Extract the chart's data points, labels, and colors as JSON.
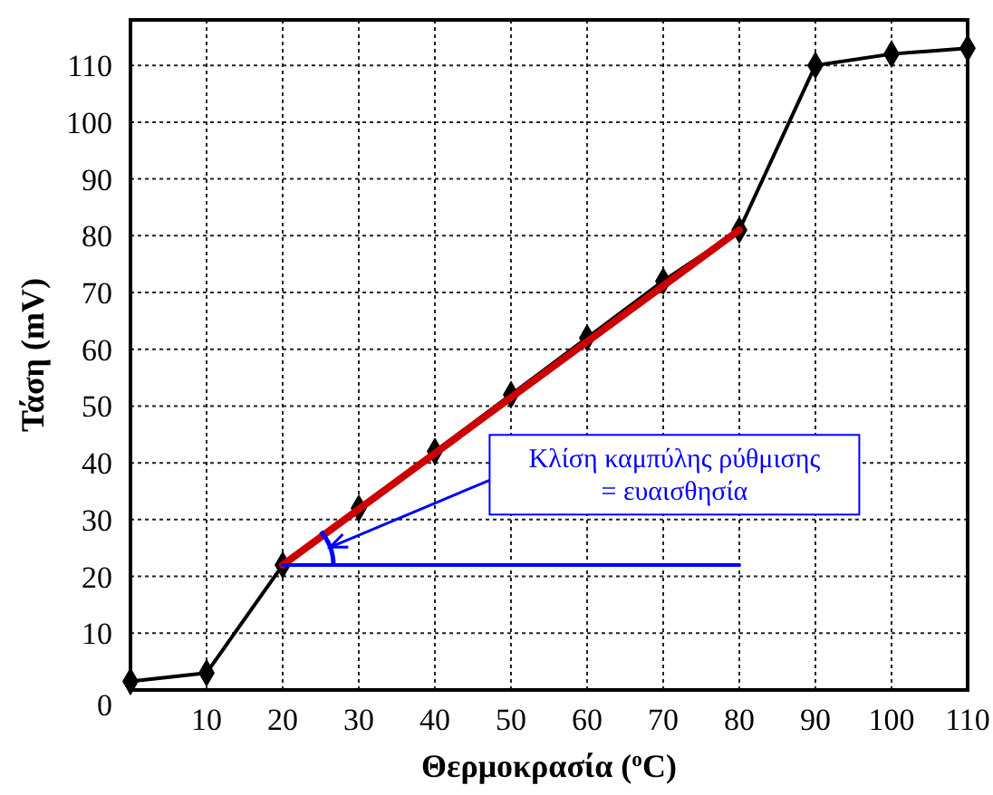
{
  "chart_data": {
    "type": "line",
    "xlabel": "Θερμοκρασία ($^{o}$C)",
    "ylabel": "Τάση (mV)",
    "xlim": [
      0,
      110
    ],
    "ylim": [
      0,
      118
    ],
    "xticks": [
      {
        "value": 0,
        "label": null
      },
      10,
      20,
      30,
      40,
      50,
      60,
      70,
      80,
      90,
      100,
      110
    ],
    "yticks": [
      0,
      10,
      20,
      30,
      40,
      50,
      60,
      70,
      80,
      90,
      100,
      110
    ],
    "grid": true,
    "marker": "diamond",
    "line_style": "solid",
    "series": [
      {
        "color": "#000000",
        "x": [
          0,
          10,
          20,
          30,
          40,
          50,
          60,
          70,
          80,
          90,
          100,
          110
        ],
        "values": [
          1.5,
          3,
          22,
          32,
          42,
          52,
          62,
          72,
          81,
          110,
          112,
          113
        ]
      },
      {
        "color": "#cc0000",
        "x": [
          20,
          80
        ],
        "values": [
          22,
          81
        ],
        "marker": "none"
      },
      {
        "color": "#0000ff",
        "x": [
          20,
          80
        ],
        "values": [
          22,
          22
        ],
        "marker": "none"
      }
    ],
    "annotations": [
      "Κλίση καμπύλης ρύθμισης\n= ευαισθησία"
    ]
  }
}
